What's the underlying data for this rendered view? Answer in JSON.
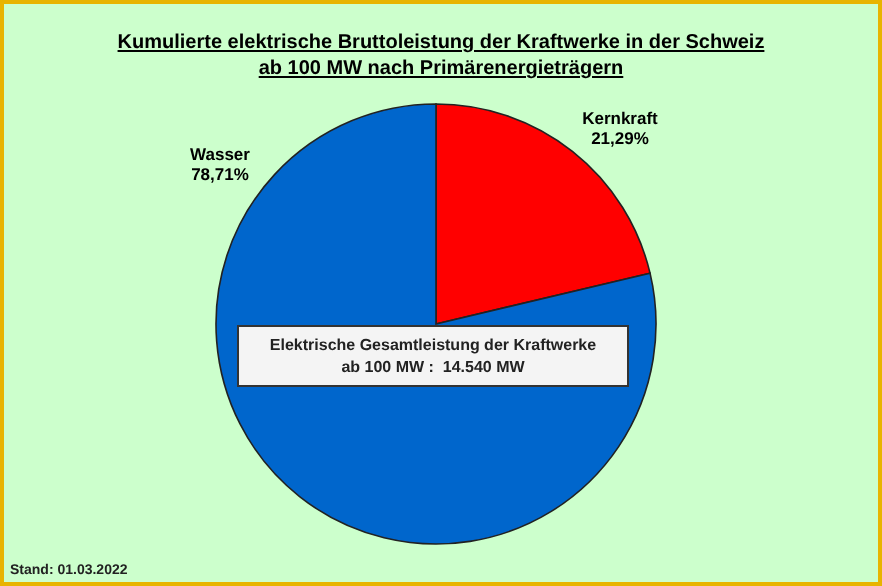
{
  "chart_data": {
    "type": "pie",
    "title": "Kumulierte elektrische Bruttoleistung der Kraftwerke in der Schweiz",
    "subtitle": "ab 100 MW nach Primärenergieträgern",
    "categories": [
      "Kernkraft",
      "Wasser"
    ],
    "values": [
      21.29,
      78.71
    ],
    "colors": [
      "#ff0000",
      "#0066cc"
    ],
    "value_labels": [
      "21,29%",
      "78,71%"
    ],
    "annotations": [
      "Elektrische Gesamtleistung der Kraftwerke ab 100 MW :  14.540 MW",
      "Stand: 01.03.2022"
    ]
  }
}
